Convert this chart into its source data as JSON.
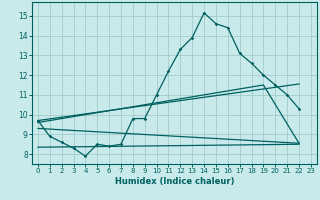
{
  "xlabel": "Humidex (Indice chaleur)",
  "xlim": [
    -0.5,
    23.5
  ],
  "ylim": [
    7.5,
    15.7
  ],
  "xticks": [
    0,
    1,
    2,
    3,
    4,
    5,
    6,
    7,
    8,
    9,
    10,
    11,
    12,
    13,
    14,
    15,
    16,
    17,
    18,
    19,
    20,
    21,
    22,
    23
  ],
  "yticks": [
    8,
    9,
    10,
    11,
    12,
    13,
    14,
    15
  ],
  "bg_color": "#c8eaea",
  "grid_color": "#9dc4c4",
  "line_color": "#006060",
  "line1": {
    "x": [
      0,
      1,
      2,
      3,
      4,
      5,
      6,
      7,
      8,
      9,
      10,
      11,
      12,
      13,
      14,
      15,
      16,
      17,
      18,
      19,
      20,
      21,
      22
    ],
    "y": [
      9.7,
      8.9,
      8.6,
      8.3,
      7.9,
      8.5,
      8.4,
      8.5,
      9.8,
      9.8,
      11.0,
      12.2,
      13.3,
      13.9,
      15.15,
      14.6,
      14.4,
      13.1,
      12.6,
      12.0,
      11.5,
      11.0,
      10.3
    ]
  },
  "line2_flat": {
    "x": [
      0,
      22
    ],
    "y": [
      8.35,
      8.5
    ]
  },
  "line3_lower": {
    "x": [
      0,
      22
    ],
    "y": [
      9.3,
      8.55
    ]
  },
  "line4_upper": {
    "x": [
      0,
      19,
      22
    ],
    "y": [
      9.6,
      11.5,
      8.55
    ]
  },
  "line5_top": {
    "x": [
      0,
      22
    ],
    "y": [
      9.7,
      11.55
    ]
  }
}
